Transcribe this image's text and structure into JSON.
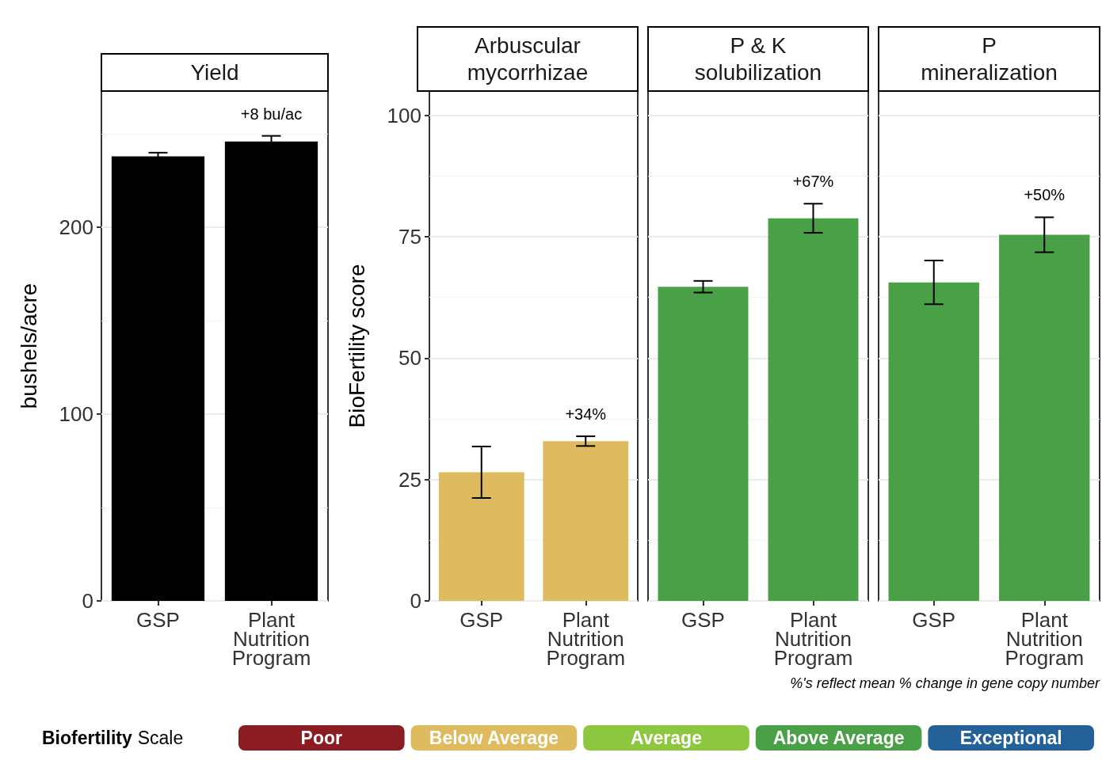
{
  "chart_data": [
    {
      "type": "bar",
      "title": "Yield",
      "ylabel": "bushels/acre",
      "categories": [
        "GSP",
        "Plant Nutrition Program"
      ],
      "values": [
        238,
        246
      ],
      "errors": [
        2,
        3
      ],
      "colors": [
        "#000000",
        "#000000"
      ],
      "ylim": [
        0,
        273
      ],
      "yticks": [
        0,
        100,
        200
      ],
      "grid": true,
      "annotations": [
        "+8 bu/ac"
      ]
    },
    {
      "type": "bar",
      "title": "Arbuscular\nmycorrhizae",
      "ylabel": "BioFertility score",
      "categories": [
        "GSP",
        "Plant Nutrition Program"
      ],
      "values": [
        26.5,
        32.9
      ],
      "errors": [
        5.3,
        1
      ],
      "colors": [
        "#dfbb5f",
        "#dfbb5f"
      ],
      "ylim": [
        0,
        105
      ],
      "yticks": [
        0,
        25,
        50,
        75,
        100
      ],
      "grid": true,
      "annotations": [
        "+34%"
      ]
    },
    {
      "type": "bar",
      "title": "P & K\nsolubilization",
      "categories": [
        "GSP",
        "Plant Nutrition Program"
      ],
      "values": [
        64.7,
        78.8
      ],
      "errors": [
        1.2,
        3
      ],
      "colors": [
        "#4aa046",
        "#4aa046"
      ],
      "ylim": [
        0,
        105
      ],
      "yticks": [
        0,
        25,
        50,
        75,
        100
      ],
      "grid": true,
      "tick_labels": "x",
      "annotations": [
        "+67%"
      ]
    },
    {
      "type": "bar",
      "title": "P\nmineralization",
      "categories": [
        "GSP",
        "Plant Nutrition Program"
      ],
      "values": [
        65.6,
        75.4
      ],
      "errors": [
        4.5,
        3.6
      ],
      "colors": [
        "#4aa046",
        "#4aa046"
      ],
      "ylim": [
        0,
        105
      ],
      "yticks": [
        0,
        25,
        50,
        75,
        100
      ],
      "grid": true,
      "tick_labels": "x",
      "annotations": [
        "+50%"
      ]
    },
    {
      "type": "other",
      "legend_title": "Biofertility Scale",
      "categories": [
        "Poor",
        "Below Average",
        "Average",
        "Above Average",
        "Exceptional"
      ],
      "colors": [
        "#8b1c22",
        "#dfbb5f",
        "#8dc63f",
        "#4aa046",
        "#236198"
      ],
      "annotations": [
        "%'s reflect mean % change in gene copy number"
      ]
    }
  ]
}
